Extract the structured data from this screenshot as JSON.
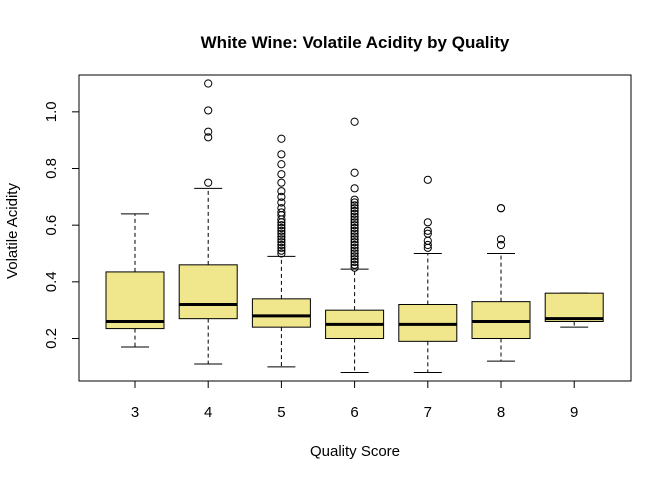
{
  "chart_data": {
    "type": "boxplot",
    "title": "White Wine: Volatile Acidity by Quality",
    "xlabel": "Quality Score",
    "ylabel": "Volatile Acidity",
    "categories": [
      "3",
      "4",
      "5",
      "6",
      "7",
      "8",
      "9"
    ],
    "yticks": [
      0.2,
      0.4,
      0.6,
      0.8,
      1.0
    ],
    "ytick_labels": [
      "0.2",
      "0.4",
      "0.6",
      "0.8",
      "1.0"
    ],
    "ylim": [
      0.05,
      1.13
    ],
    "box_color": "#f0e68c",
    "boxes": [
      {
        "category": "3",
        "whisker_low": 0.17,
        "q1": 0.235,
        "median": 0.26,
        "q3": 0.435,
        "whisker_high": 0.64,
        "outliers": []
      },
      {
        "category": "4",
        "whisker_low": 0.11,
        "q1": 0.27,
        "median": 0.32,
        "q3": 0.46,
        "whisker_high": 0.73,
        "outliers": [
          0.75,
          0.91,
          0.93,
          1.005,
          1.1
        ]
      },
      {
        "category": "5",
        "whisker_low": 0.1,
        "q1": 0.24,
        "median": 0.28,
        "q3": 0.34,
        "whisker_high": 0.49,
        "outliers": [
          0.5,
          0.51,
          0.52,
          0.53,
          0.54,
          0.55,
          0.56,
          0.57,
          0.58,
          0.59,
          0.6,
          0.61,
          0.62,
          0.635,
          0.645,
          0.66,
          0.68,
          0.7,
          0.72,
          0.75,
          0.78,
          0.815,
          0.85,
          0.905
        ]
      },
      {
        "category": "6",
        "whisker_low": 0.08,
        "q1": 0.2,
        "median": 0.25,
        "q3": 0.3,
        "whisker_high": 0.445,
        "outliers": [
          0.45,
          0.46,
          0.47,
          0.48,
          0.49,
          0.5,
          0.51,
          0.52,
          0.53,
          0.54,
          0.55,
          0.56,
          0.57,
          0.58,
          0.59,
          0.6,
          0.61,
          0.62,
          0.63,
          0.64,
          0.65,
          0.66,
          0.67,
          0.68,
          0.69,
          0.73,
          0.785,
          0.965
        ]
      },
      {
        "category": "7",
        "whisker_low": 0.08,
        "q1": 0.19,
        "median": 0.25,
        "q3": 0.32,
        "whisker_high": 0.5,
        "outliers": [
          0.52,
          0.53,
          0.545,
          0.57,
          0.58,
          0.61,
          0.76
        ]
      },
      {
        "category": "8",
        "whisker_low": 0.12,
        "q1": 0.2,
        "median": 0.26,
        "q3": 0.33,
        "whisker_high": 0.5,
        "outliers": [
          0.53,
          0.55,
          0.66,
          0.66
        ]
      },
      {
        "category": "9",
        "whisker_low": 0.24,
        "q1": 0.26,
        "median": 0.27,
        "q3": 0.36,
        "whisker_high": 0.36,
        "outliers": []
      }
    ]
  }
}
